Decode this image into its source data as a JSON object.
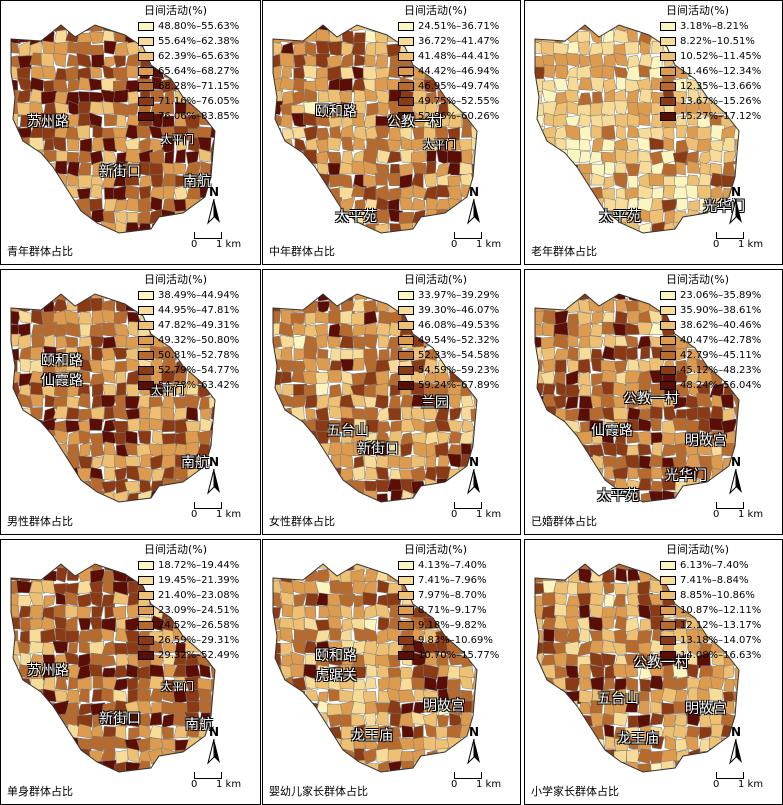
{
  "legend_title": "日间活动(%)",
  "scale": {
    "zero": "0",
    "one": "1 km"
  },
  "north_label": "N",
  "panels": [
    {
      "caption": "青年群体占比",
      "colors": [
        "#fbf5c2",
        "#f6dc98",
        "#eec073",
        "#dc9b4e",
        "#b66a2e",
        "#8a3b15",
        "#5b0e05"
      ],
      "classes": [
        "48.80%–55.63%",
        "55.64%–62.38%",
        "62.39%–65.63%",
        "65.64%–68.27%",
        "68.28%–71.15%",
        "71.16%–76.05%",
        "76.06%–83.85%"
      ],
      "places": [
        "苏州路",
        "新街口",
        "太平门",
        "南航"
      ]
    },
    {
      "caption": "中年群体占比",
      "colors": [
        "#fbf5c2",
        "#f6dc98",
        "#eec073",
        "#dc9b4e",
        "#b66a2e",
        "#8a3b15",
        "#5b0e05"
      ],
      "classes": [
        "24.51%–36.71%",
        "36.72%–41.47%",
        "41.48%–44.41%",
        "44.42%–46.94%",
        "46.95%–49.74%",
        "49.75%–52.55%",
        "52.56%–60.26%"
      ],
      "places": [
        "颐和路",
        "公教一村",
        "太平门",
        "太平苑"
      ]
    },
    {
      "caption": "老年群体占比",
      "colors": [
        "#fbf5c2",
        "#f6dc98",
        "#eec073",
        "#dc9b4e",
        "#b66a2e",
        "#8a3b15",
        "#5b0e05"
      ],
      "classes": [
        "3.18%–8.21%",
        "8.22%–10.51%",
        "10.52%–11.45%",
        "11.46%–12.34%",
        "12.35%–13.66%",
        "13.67%–15.26%",
        "15.27%–17.12%"
      ],
      "places": [
        "太平苑",
        "光华门"
      ]
    },
    {
      "caption": "男性群体占比",
      "colors": [
        "#fbf5c2",
        "#f6dc98",
        "#eec073",
        "#dc9b4e",
        "#b66a2e",
        "#8a3b15",
        "#5b0e05"
      ],
      "classes": [
        "38.49%–44.94%",
        "44.95%–47.81%",
        "47.82%–49.31%",
        "49.32%–50.80%",
        "50.81%–52.78%",
        "52.79%–54.77%",
        "54.78%–63.42%"
      ],
      "places": [
        "颐和路",
        "仙霞路",
        "太平门",
        "南航"
      ]
    },
    {
      "caption": "女性群体占比",
      "colors": [
        "#fbf5c2",
        "#f6dc98",
        "#eec073",
        "#dc9b4e",
        "#b66a2e",
        "#8a3b15",
        "#5b0e05"
      ],
      "classes": [
        "33.97%–39.29%",
        "39.30%–46.07%",
        "46.08%–49.53%",
        "49.54%–52.32%",
        "52.33%–54.58%",
        "54.59%–59.23%",
        "59.24%–67.89%"
      ],
      "places": [
        "五台山",
        "兰园",
        "新街口"
      ]
    },
    {
      "caption": "已婚群体占比",
      "colors": [
        "#fbf5c2",
        "#f6dc98",
        "#eec073",
        "#dc9b4e",
        "#b66a2e",
        "#8a3b15",
        "#5b0e05"
      ],
      "classes": [
        "23.06%–35.89%",
        "35.90%–38.61%",
        "38.62%–40.46%",
        "40.47%–42.78%",
        "42.79%–45.11%",
        "45.12%–48.23%",
        "48.24%–56.04%"
      ],
      "places": [
        "仙霞路",
        "公教一村",
        "明故宫",
        "光华门",
        "太平苑"
      ]
    },
    {
      "caption": "单身群体占比",
      "colors": [
        "#fbf5c2",
        "#f6dc98",
        "#eec073",
        "#dc9b4e",
        "#b66a2e",
        "#8a3b15",
        "#5b0e05"
      ],
      "classes": [
        "18.72%–19.44%",
        "19.45%–21.39%",
        "21.40%–23.08%",
        "23.09%–24.51%",
        "24.52%–26.58%",
        "26.59%–29.31%",
        "29.32%–52.49%"
      ],
      "places": [
        "苏州路",
        "新街口",
        "太平门",
        "南航"
      ]
    },
    {
      "caption": "婴幼儿家长群体占比",
      "colors": [
        "#fbf5c2",
        "#f6dc98",
        "#eec073",
        "#dc9b4e",
        "#b66a2e",
        "#8a3b15",
        "#5b0e05"
      ],
      "classes": [
        "4.13%–7.40%",
        "7.41%–7.96%",
        "7.97%–8.70%",
        "8.71%–9.17%",
        "9.18%–9.82%",
        "9.83%–10.69%",
        "10.70%–15.77%"
      ],
      "places": [
        "颐和路",
        "虎踞关",
        "明故宫",
        "龙王庙"
      ]
    },
    {
      "caption": "小学家长群体占比",
      "colors": [
        "#fbf5c2",
        "#f6dc98",
        "#eec073",
        "#dc9b4e",
        "#b66a2e",
        "#8a3b15",
        "#5b0e05"
      ],
      "classes": [
        "6.13%–7.40%",
        "7.41%–8.84%",
        "8.85%–10.86%",
        "10.87%–12.11%",
        "12.12%–13.17%",
        "13.18%–14.07%",
        "14.08%–16.63%"
      ],
      "places": [
        "公教一村",
        "五台山",
        "明故宫",
        "龙王庙"
      ]
    }
  ]
}
